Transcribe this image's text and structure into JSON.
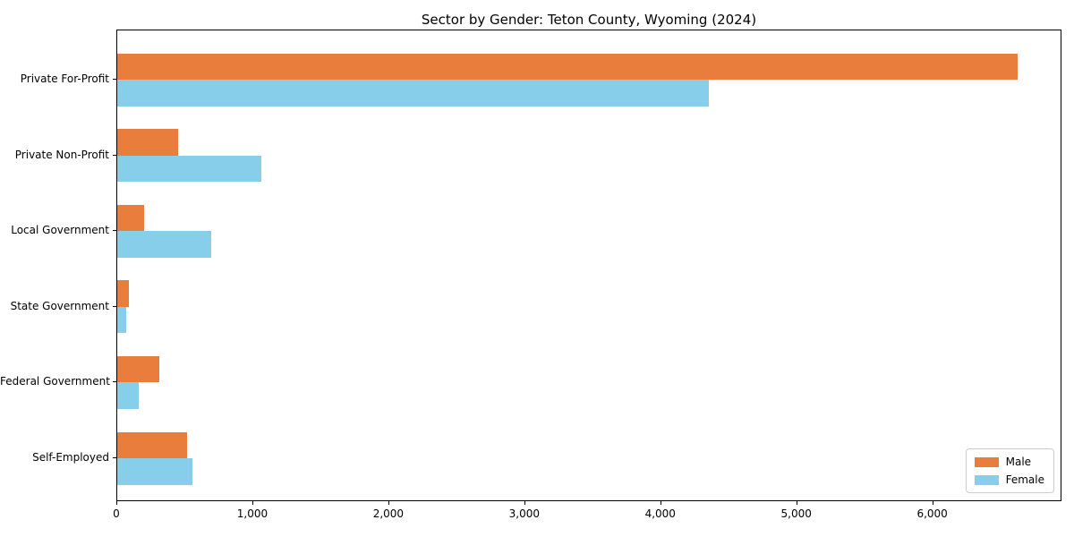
{
  "chart_data": {
    "type": "bar",
    "orientation": "horizontal",
    "title": "Sector by Gender: Teton County, Wyoming (2024)",
    "xlabel": "",
    "ylabel": "",
    "categories": [
      "Private For-Profit",
      "Private Non-Profit",
      "Local Government",
      "State Government",
      "Federal Government",
      "Self-Employed"
    ],
    "series": [
      {
        "name": "Male",
        "color": "#e87d3c",
        "values": [
          6620,
          445,
          200,
          85,
          310,
          515
        ]
      },
      {
        "name": "Female",
        "color": "#87ceeb",
        "values": [
          4350,
          1060,
          690,
          65,
          160,
          550
        ]
      }
    ],
    "xlim": [
      0,
      6950
    ],
    "x_ticks": [
      0,
      1000,
      2000,
      3000,
      4000,
      5000,
      6000
    ],
    "x_tick_labels": [
      "0",
      "1,000",
      "2,000",
      "3,000",
      "4,000",
      "5,000",
      "6,000"
    ],
    "grid": false,
    "legend_position": "lower right",
    "background_color": "#ffffff",
    "spine_color": "#000000"
  }
}
